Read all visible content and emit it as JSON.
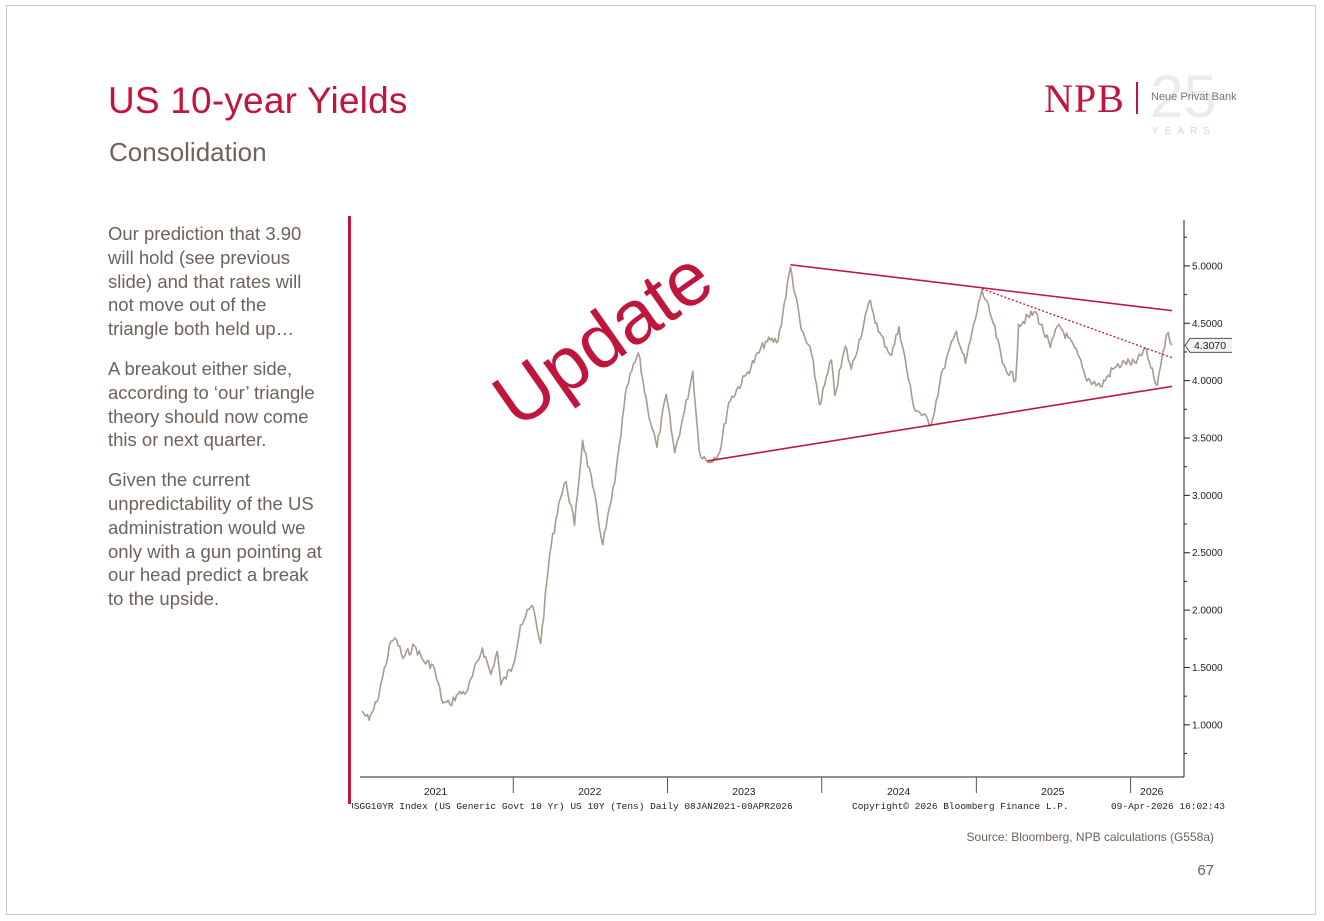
{
  "slide": {
    "title": "US 10-year Yields",
    "subtitle": "Consolidation",
    "page_number": "67",
    "source": "Source: Bloomberg, NPB calculations (G558a)",
    "accent_color": "#c0153c",
    "text_color": "#6e6259"
  },
  "logo": {
    "mark": "NPB",
    "number": "25",
    "name": "Neue Privat Bank",
    "years": "YEARS"
  },
  "sidebar": {
    "paragraphs": [
      "Our prediction that 3.90 will hold (see previous slide) and that rates will not move out of the triangle both held up…",
      "A breakout either side, according to ‘our’ triangle theory should now come this or next quarter.",
      "Given the current unpredictability of the US administration would we only with a gun pointing at our head predict a break to the upside."
    ]
  },
  "chart_data": {
    "type": "line",
    "x_range": [
      "2021-01-08",
      "2026-04-09"
    ],
    "ylim": [
      0.65,
      5.4
    ],
    "y_ticks": [
      1.0,
      1.5,
      2.0,
      2.5,
      3.0,
      3.5,
      4.0,
      4.5,
      5.0
    ],
    "y_tick_labels": [
      "1.0000",
      "1.5000",
      "2.0000",
      "2.5000",
      "3.0000",
      "3.5000",
      "4.0000",
      "4.5000",
      "5.0000"
    ],
    "x_labels": [
      {
        "label": "2021",
        "date": "2021-07-01"
      },
      {
        "label": "2022",
        "date": "2022-07-01"
      },
      {
        "label": "2023",
        "date": "2023-07-01"
      },
      {
        "label": "2024",
        "date": "2024-07-01"
      },
      {
        "label": "2025",
        "date": "2025-07-01"
      },
      {
        "label": "2026",
        "date": "2026-02-20"
      }
    ],
    "year_separators": [
      "2022-01-01",
      "2023-01-01",
      "2024-01-01",
      "2025-01-01",
      "2026-01-01"
    ],
    "grid": false,
    "last_value_label": "4.3070",
    "last_value": 4.307,
    "series": [
      {
        "color": "#a89c8f",
        "points": [
          [
            "2021-01-08",
            1.12
          ],
          [
            "2021-01-25",
            1.04
          ],
          [
            "2021-02-12",
            1.2
          ],
          [
            "2021-02-26",
            1.42
          ],
          [
            "2021-03-18",
            1.73
          ],
          [
            "2021-03-31",
            1.74
          ],
          [
            "2021-04-15",
            1.58
          ],
          [
            "2021-05-12",
            1.69
          ],
          [
            "2021-06-04",
            1.55
          ],
          [
            "2021-06-25",
            1.52
          ],
          [
            "2021-07-19",
            1.19
          ],
          [
            "2021-08-04",
            1.18
          ],
          [
            "2021-08-20",
            1.26
          ],
          [
            "2021-09-15",
            1.3
          ],
          [
            "2021-10-20",
            1.67
          ],
          [
            "2021-11-09",
            1.44
          ],
          [
            "2021-11-24",
            1.64
          ],
          [
            "2021-12-03",
            1.35
          ],
          [
            "2021-12-31",
            1.51
          ],
          [
            "2022-01-18",
            1.87
          ],
          [
            "2022-02-15",
            2.04
          ],
          [
            "2022-03-07",
            1.71
          ],
          [
            "2022-03-28",
            2.48
          ],
          [
            "2022-04-19",
            2.94
          ],
          [
            "2022-05-06",
            3.12
          ],
          [
            "2022-05-26",
            2.74
          ],
          [
            "2022-06-14",
            3.48
          ],
          [
            "2022-07-08",
            3.08
          ],
          [
            "2022-08-01",
            2.57
          ],
          [
            "2022-08-29",
            3.11
          ],
          [
            "2022-09-27",
            3.95
          ],
          [
            "2022-10-24",
            4.24
          ],
          [
            "2022-11-15",
            3.76
          ],
          [
            "2022-12-07",
            3.42
          ],
          [
            "2022-12-29",
            3.88
          ],
          [
            "2023-01-18",
            3.37
          ],
          [
            "2023-02-10",
            3.73
          ],
          [
            "2023-03-02",
            4.08
          ],
          [
            "2023-03-17",
            3.39
          ],
          [
            "2023-04-06",
            3.29
          ],
          [
            "2023-05-04",
            3.37
          ],
          [
            "2023-05-26",
            3.81
          ],
          [
            "2023-07-06",
            4.05
          ],
          [
            "2023-08-21",
            4.34
          ],
          [
            "2023-09-20",
            4.35
          ],
          [
            "2023-10-19",
            4.99
          ],
          [
            "2023-11-14",
            4.44
          ],
          [
            "2023-12-08",
            4.23
          ],
          [
            "2023-12-27",
            3.79
          ],
          [
            "2024-01-24",
            4.18
          ],
          [
            "2024-02-01",
            3.87
          ],
          [
            "2024-02-26",
            4.3
          ],
          [
            "2024-03-11",
            4.1
          ],
          [
            "2024-04-25",
            4.7
          ],
          [
            "2024-05-14",
            4.43
          ],
          [
            "2024-06-14",
            4.22
          ],
          [
            "2024-07-02",
            4.47
          ],
          [
            "2024-08-05",
            3.78
          ],
          [
            "2024-09-16",
            3.62
          ],
          [
            "2024-10-14",
            4.1
          ],
          [
            "2024-11-15",
            4.43
          ],
          [
            "2024-12-06",
            4.15
          ],
          [
            "2025-01-14",
            4.79
          ],
          [
            "2025-02-10",
            4.5
          ],
          [
            "2025-03-04",
            4.15
          ],
          [
            "2025-04-04",
            4.0
          ],
          [
            "2025-04-11",
            4.49
          ],
          [
            "2025-05-21",
            4.6
          ],
          [
            "2025-06-25",
            4.29
          ],
          [
            "2025-07-15",
            4.49
          ],
          [
            "2025-08-29",
            4.23
          ],
          [
            "2025-09-16",
            4.03
          ],
          [
            "2025-10-22",
            3.95
          ],
          [
            "2025-11-20",
            4.1
          ],
          [
            "2025-12-18",
            4.16
          ],
          [
            "2026-01-14",
            4.15
          ],
          [
            "2026-02-04",
            4.28
          ],
          [
            "2026-02-25",
            4.03
          ],
          [
            "2026-03-05",
            3.96
          ],
          [
            "2026-03-18",
            4.25
          ],
          [
            "2026-03-31",
            4.42
          ],
          [
            "2026-04-09",
            4.31
          ]
        ]
      }
    ],
    "trendlines": [
      {
        "from": [
          "2023-10-19",
          5.01
        ],
        "to": [
          "2026-04-09",
          4.61
        ],
        "style": "solid",
        "color": "#c0153c"
      },
      {
        "from": [
          "2023-04-06",
          3.3
        ],
        "to": [
          "2026-04-09",
          3.95
        ],
        "style": "solid",
        "color": "#c0153c"
      },
      {
        "from": [
          "2025-01-14",
          4.8
        ],
        "to": [
          "2026-04-09",
          4.2
        ],
        "style": "dotted",
        "color": "#c0153c"
      }
    ],
    "annotation": {
      "text": "Update",
      "color": "#c0153c",
      "rotation_deg": -35
    },
    "footer_left": "USGG10YR Index (US Generic Govt 10 Yr) US 10Y (Tens) Daily 08JAN2021-09APR2026",
    "footer_center": "Copyright© 2026 Bloomberg Finance L.P.",
    "footer_right": "09-Apr-2026 16:02:43"
  }
}
